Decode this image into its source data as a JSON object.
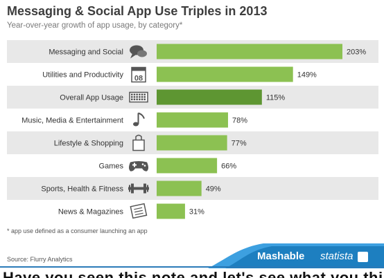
{
  "colors": {
    "bar": "#8cc152",
    "bar_highlight": "#5e9632",
    "row_band": "#e8e8e8",
    "icon": "#555555",
    "footer_blue": "#1d7fc0",
    "footer_blue_light": "#3da0e0"
  },
  "footnote": "* app use defined as a consumer launching an app",
  "source": "Source: Flurry Analytics",
  "brand": {
    "mashable": "Mashable",
    "statista": "statista"
  },
  "bottom_fragment": "Have you seen this note and let's see what you think?",
  "chart_data": {
    "type": "bar",
    "orientation": "horizontal",
    "title": "Messaging & Social App Use Triples in 2013",
    "subtitle": "Year-over-year growth of app usage, by category*",
    "value_suffix": "%",
    "grid": false,
    "categories": [
      "Messaging and Social",
      "Utilities and Productivity",
      "Overall App Usage",
      "Music, Media & Entertainment",
      "Lifestyle & Shopping",
      "Games",
      "Sports, Health & Fitness",
      "News & Magazines"
    ],
    "icons": [
      "speech-bubble-icon",
      "calendar-icon",
      "keyboard-icon",
      "music-note-icon",
      "shopping-bag-icon",
      "gamepad-icon",
      "dumbbell-icon",
      "newspaper-icon"
    ],
    "calendar_icon_text": "08",
    "values": [
      203,
      149,
      115,
      78,
      77,
      66,
      49,
      31
    ],
    "highlight_index": 2,
    "xlim": [
      0,
      210
    ]
  }
}
